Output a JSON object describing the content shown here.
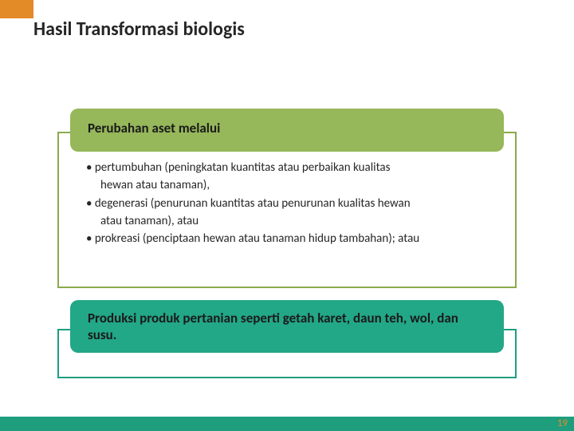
{
  "title": "Hasil Transformasi biologis",
  "section1": {
    "header": "Perubahan aset melalui",
    "bullets": [
      {
        "lead": "• pertumbuhan (peningkatan kuantitas atau perbaikan kualitas",
        "cont": "hewan atau tanaman),"
      },
      {
        "lead": "• degenerasi (penurunan kuantitas atau penurunan kualitas hewan",
        "cont": "atau tanaman), atau"
      },
      {
        "lead": "• prokreasi (penciptaan hewan atau tanaman hidup tambahan); atau",
        "cont": ""
      }
    ]
  },
  "section2": {
    "header": "Produksi produk pertanian seperti getah karet, daun teh, wol, dan susu."
  },
  "pageNumber": "19",
  "colors": {
    "accentOrange": "#e38b27",
    "green": "#96b75a",
    "greenBorder": "#8aab4c",
    "teal": "#22a787",
    "tealBorder": "#1f9e7e",
    "footerTeal": "#1f9e7e",
    "textDark": "#262626"
  }
}
